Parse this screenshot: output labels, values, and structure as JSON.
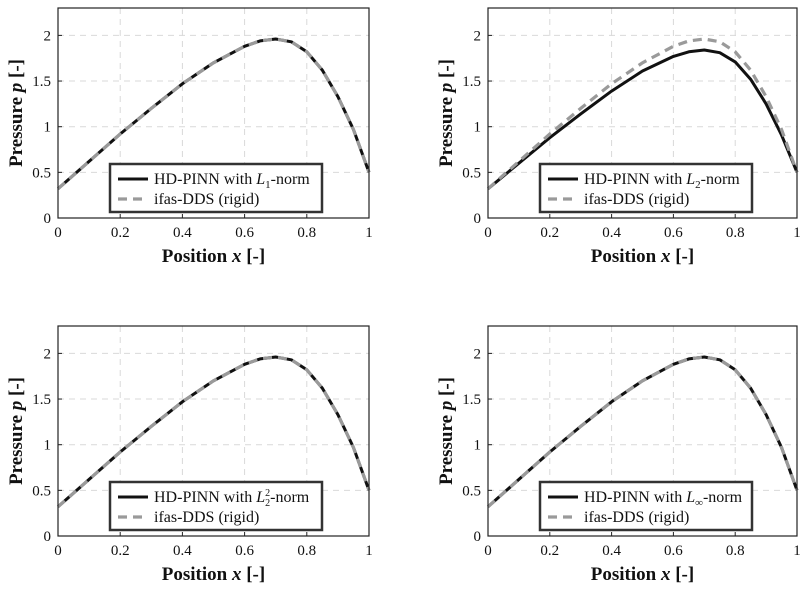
{
  "chart_data": [
    {
      "type": "line",
      "xlabel": "Position",
      "xlabel_var": "x",
      "xlabel_unit": "[-]",
      "ylabel": "Pressure",
      "ylabel_var": "p",
      "ylabel_unit": "[-]",
      "xlim": [
        0,
        1
      ],
      "ylim": [
        0,
        2.3
      ],
      "xticks": [
        "0",
        "0.2",
        "0.4",
        "0.6",
        "0.8",
        "1"
      ],
      "yticks": [
        "0",
        "0.5",
        "1",
        "1.5",
        "2"
      ],
      "grid": true,
      "legend_position": "bottom-center",
      "x": [
        0,
        0.1,
        0.2,
        0.3,
        0.4,
        0.5,
        0.6,
        0.65,
        0.7,
        0.75,
        0.8,
        0.85,
        0.9,
        0.95,
        1.0
      ],
      "series": [
        {
          "name": "HD-PINN with L1-norm",
          "label_prefix": "HD-PINN with ",
          "norm_base": "L",
          "norm_sub": "1",
          "norm_sup": "",
          "label_suffix": "-norm",
          "style": "solid",
          "values": [
            0.32,
            0.62,
            0.92,
            1.2,
            1.47,
            1.7,
            1.88,
            1.94,
            1.96,
            1.93,
            1.82,
            1.62,
            1.33,
            0.97,
            0.5
          ]
        },
        {
          "name": "ifas-DDS (rigid)",
          "label": "ifas-DDS (rigid)",
          "style": "dashed",
          "values": [
            0.32,
            0.62,
            0.92,
            1.2,
            1.47,
            1.7,
            1.88,
            1.94,
            1.96,
            1.93,
            1.82,
            1.62,
            1.33,
            0.97,
            0.5
          ]
        }
      ]
    },
    {
      "type": "line",
      "xlabel": "Position",
      "xlabel_var": "x",
      "xlabel_unit": "[-]",
      "ylabel": "Pressure",
      "ylabel_var": "p",
      "ylabel_unit": "[-]",
      "xlim": [
        0,
        1
      ],
      "ylim": [
        0,
        2.3
      ],
      "xticks": [
        "0",
        "0.2",
        "0.4",
        "0.6",
        "0.8",
        "1"
      ],
      "yticks": [
        "0",
        "0.5",
        "1",
        "1.5",
        "2"
      ],
      "grid": true,
      "legend_position": "bottom-center",
      "x": [
        0,
        0.1,
        0.2,
        0.3,
        0.4,
        0.5,
        0.6,
        0.65,
        0.7,
        0.75,
        0.8,
        0.85,
        0.9,
        0.95,
        1.0
      ],
      "series": [
        {
          "name": "HD-PINN with L2-norm",
          "label_prefix": "HD-PINN with ",
          "norm_base": "L",
          "norm_sub": "2",
          "norm_sup": "",
          "label_suffix": "-norm",
          "style": "solid",
          "values": [
            0.32,
            0.6,
            0.88,
            1.14,
            1.39,
            1.61,
            1.77,
            1.82,
            1.84,
            1.81,
            1.71,
            1.52,
            1.25,
            0.91,
            0.5
          ]
        },
        {
          "name": "ifas-DDS (rigid)",
          "label": "ifas-DDS (rigid)",
          "style": "dashed",
          "values": [
            0.32,
            0.62,
            0.92,
            1.2,
            1.47,
            1.7,
            1.88,
            1.94,
            1.96,
            1.93,
            1.82,
            1.62,
            1.33,
            0.97,
            0.5
          ]
        }
      ]
    },
    {
      "type": "line",
      "xlabel": "Position",
      "xlabel_var": "x",
      "xlabel_unit": "[-]",
      "ylabel": "Pressure",
      "ylabel_var": "p",
      "ylabel_unit": "[-]",
      "xlim": [
        0,
        1
      ],
      "ylim": [
        0,
        2.3
      ],
      "xticks": [
        "0",
        "0.2",
        "0.4",
        "0.6",
        "0.8",
        "1"
      ],
      "yticks": [
        "0",
        "0.5",
        "1",
        "1.5",
        "2"
      ],
      "grid": true,
      "legend_position": "bottom-center",
      "x": [
        0,
        0.1,
        0.2,
        0.3,
        0.4,
        0.5,
        0.6,
        0.65,
        0.7,
        0.75,
        0.8,
        0.85,
        0.9,
        0.95,
        1.0
      ],
      "series": [
        {
          "name": "HD-PINN with L2^2-norm",
          "label_prefix": "HD-PINN with ",
          "norm_base": "L",
          "norm_sub": "2",
          "norm_sup": "2",
          "label_suffix": "-norm",
          "style": "solid",
          "values": [
            0.32,
            0.62,
            0.92,
            1.2,
            1.47,
            1.7,
            1.88,
            1.94,
            1.96,
            1.93,
            1.82,
            1.62,
            1.33,
            0.97,
            0.5
          ]
        },
        {
          "name": "ifas-DDS (rigid)",
          "label": "ifas-DDS (rigid)",
          "style": "dashed",
          "values": [
            0.32,
            0.62,
            0.92,
            1.2,
            1.47,
            1.7,
            1.88,
            1.94,
            1.96,
            1.93,
            1.82,
            1.62,
            1.33,
            0.97,
            0.5
          ]
        }
      ]
    },
    {
      "type": "line",
      "xlabel": "Position",
      "xlabel_var": "x",
      "xlabel_unit": "[-]",
      "ylabel": "Pressure",
      "ylabel_var": "p",
      "ylabel_unit": "[-]",
      "xlim": [
        0,
        1
      ],
      "ylim": [
        0,
        2.3
      ],
      "xticks": [
        "0",
        "0.2",
        "0.4",
        "0.6",
        "0.8",
        "1"
      ],
      "yticks": [
        "0",
        "0.5",
        "1",
        "1.5",
        "2"
      ],
      "grid": true,
      "legend_position": "bottom-center",
      "x": [
        0,
        0.1,
        0.2,
        0.3,
        0.4,
        0.5,
        0.6,
        0.65,
        0.7,
        0.75,
        0.8,
        0.85,
        0.9,
        0.95,
        1.0
      ],
      "series": [
        {
          "name": "HD-PINN with L∞-norm",
          "label_prefix": "HD-PINN with ",
          "norm_base": "L",
          "norm_sub": "∞",
          "norm_sup": "",
          "label_suffix": "-norm",
          "style": "solid",
          "values": [
            0.32,
            0.62,
            0.92,
            1.2,
            1.47,
            1.7,
            1.88,
            1.94,
            1.96,
            1.93,
            1.82,
            1.62,
            1.33,
            0.97,
            0.5
          ]
        },
        {
          "name": "ifas-DDS (rigid)",
          "label": "ifas-DDS (rigid)",
          "style": "dashed",
          "values": [
            0.32,
            0.62,
            0.92,
            1.2,
            1.47,
            1.7,
            1.88,
            1.94,
            1.96,
            1.93,
            1.82,
            1.62,
            1.33,
            0.97,
            0.5
          ]
        }
      ]
    }
  ],
  "colors": {
    "solid_line": "#111111",
    "dashed_line": "#9a9a9a",
    "grid": "#d9d9d9",
    "axes": "#222222",
    "legend_border": "#333333"
  }
}
